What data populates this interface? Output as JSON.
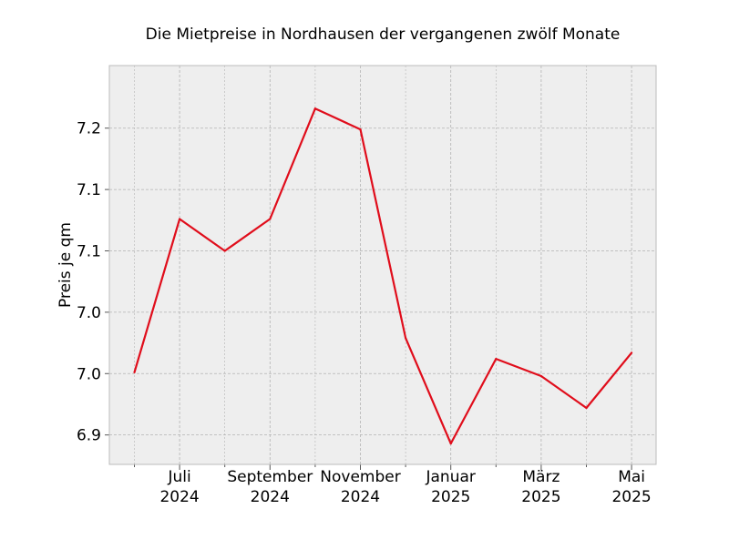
{
  "chart_data": {
    "type": "line",
    "title": "Die Mietpreise in Nordhausen der vergangenen zwölf Monate",
    "xlabel": "",
    "ylabel": "Preis je qm",
    "x": [
      "2024-06",
      "2024-07",
      "2024-08",
      "2024-09",
      "2024-10",
      "2024-11",
      "2024-12",
      "2025-01",
      "2025-02",
      "2025-03",
      "2025-04",
      "2025-05"
    ],
    "series": [
      {
        "values": [
          6.958,
          7.083,
          7.057,
          7.083,
          7.173,
          7.156,
          6.986,
          6.9,
          6.969,
          6.955,
          6.929,
          6.974
        ]
      }
    ],
    "ylim": [
      6.883,
      7.208
    ],
    "y_ticks": [
      {
        "value": 6.907,
        "label": "6.9"
      },
      {
        "value": 6.957,
        "label": "7.0"
      },
      {
        "value": 7.007,
        "label": "7.0"
      },
      {
        "value": 7.057,
        "label": "7.1"
      },
      {
        "value": 7.107,
        "label": "7.1"
      },
      {
        "value": 7.157,
        "label": "7.2"
      }
    ],
    "x_ticks": [
      {
        "x": "2024-07",
        "label": [
          "Juli",
          "2024"
        ]
      },
      {
        "x": "2024-09",
        "label": [
          "September",
          "2024"
        ]
      },
      {
        "x": "2024-11",
        "label": [
          "November",
          "2024"
        ]
      },
      {
        "x": "2025-01",
        "label": [
          "Januar",
          "2025"
        ]
      },
      {
        "x": "2025-03",
        "label": [
          "März",
          "2025"
        ]
      },
      {
        "x": "2025-05",
        "label": [
          "Mai",
          "2025"
        ]
      }
    ],
    "minor_x_ticks": [
      "2024-06",
      "2024-08",
      "2024-10",
      "2024-12",
      "2025-02",
      "2025-04"
    ],
    "grid": true,
    "colors": {
      "line": "#e00d1b",
      "plot_background": "#eeeeee",
      "grid": "#b3b3b3",
      "frame": "#bcbcbc"
    }
  }
}
